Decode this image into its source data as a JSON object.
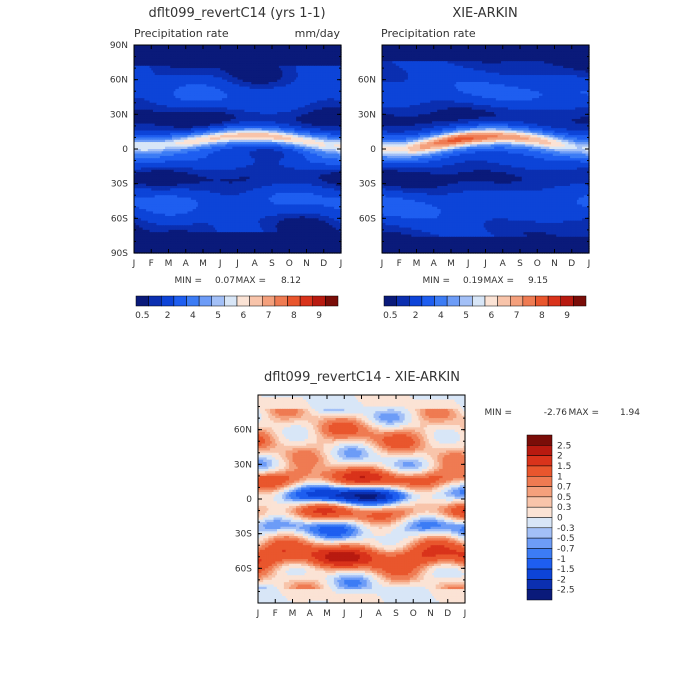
{
  "chart_data": [
    {
      "type": "heatmap",
      "title": "dflt099_revertC14 (yrs 1-1)",
      "subtitle_left": "Precipitation rate",
      "subtitle_right": "mm/day",
      "x_ticks": [
        "J",
        "F",
        "M",
        "A",
        "M",
        "J",
        "J",
        "A",
        "S",
        "O",
        "N",
        "D",
        "J"
      ],
      "y_ticks": [
        "90N",
        "60N",
        "30N",
        "0",
        "30S",
        "60S",
        "90S"
      ],
      "ylim": [
        -90,
        90
      ],
      "min_label": "MIN =",
      "min_value": "0.07",
      "max_label": "MAX =",
      "max_value": "8.12",
      "colorbar_ticks": [
        "0.5",
        "2",
        "4",
        "5",
        "6",
        "7",
        "8",
        "9"
      ],
      "colorbar_colors": [
        "#0a1a7a",
        "#0b2fb0",
        "#0d44d8",
        "#1e5ef0",
        "#3c7cf5",
        "#6d9cf7",
        "#a3c0f7",
        "#d8e6f7",
        "#fbe3d5",
        "#f8c4aa",
        "#f4a07c",
        "#ef7b52",
        "#e9562d",
        "#d9331b",
        "#b81a10",
        "#7a0d08"
      ],
      "field_model": "seasonal ITCZ band near equator peaking ~8 mm/day in Jul-Aug; dry subtropics; moderate mid-latitude storm tracks"
    },
    {
      "type": "heatmap",
      "title": "XIE-ARKIN",
      "subtitle_left": "Precipitation rate",
      "subtitle_right": "",
      "x_ticks": [
        "J",
        "F",
        "M",
        "A",
        "M",
        "J",
        "J",
        "A",
        "S",
        "O",
        "N",
        "D",
        "J"
      ],
      "y_ticks": [
        "60N",
        "30N",
        "0",
        "30S",
        "60S"
      ],
      "ylim": [
        -90,
        90
      ],
      "min_label": "MIN =",
      "min_value": "0.19",
      "max_label": "MAX =",
      "max_value": "9.15",
      "colorbar_ticks": [
        "0.5",
        "2",
        "4",
        "5",
        "6",
        "7",
        "8",
        "9"
      ],
      "colorbar_colors": [
        "#0a1a7a",
        "#0b2fb0",
        "#0d44d8",
        "#1e5ef0",
        "#3c7cf5",
        "#6d9cf7",
        "#a3c0f7",
        "#d8e6f7",
        "#fbe3d5",
        "#f8c4aa",
        "#f4a07c",
        "#ef7b52",
        "#e9562d",
        "#d9331b",
        "#b81a10",
        "#7a0d08"
      ],
      "field_model": "observed ITCZ maximum ~9 mm/day near 5-10N in Jul-Aug"
    },
    {
      "type": "heatmap",
      "title": "dflt099_revertC14 - XIE-ARKIN",
      "x_ticks": [
        "J",
        "F",
        "M",
        "A",
        "M",
        "J",
        "J",
        "A",
        "S",
        "O",
        "N",
        "D",
        "J"
      ],
      "y_ticks": [
        "60N",
        "30N",
        "0",
        "30S",
        "60S"
      ],
      "ylim": [
        -90,
        90
      ],
      "min_label": "MIN =",
      "min_value": "-2.76",
      "max_label": "MAX =",
      "max_value": "1.94",
      "colorbar_ticks": [
        "2.5",
        "2",
        "1.5",
        "1",
        "0.7",
        "0.5",
        "0.3",
        "0",
        "-0.3",
        "-0.5",
        "-0.7",
        "-1",
        "-1.5",
        "-2",
        "-2.5"
      ],
      "colorbar_colors": [
        "#7a0d08",
        "#b81a10",
        "#d9331b",
        "#e9562d",
        "#ef7b52",
        "#f4a07c",
        "#f8c4aa",
        "#fbe3d5",
        "#d8e6f7",
        "#a3c0f7",
        "#6d9cf7",
        "#3c7cf5",
        "#1e5ef0",
        "#0d44d8",
        "#0b2fb0",
        "#0a1a7a"
      ],
      "field_model": "negative band just north of equator, positive bands near 15N, 15S and strong positive near 45-55S"
    }
  ]
}
